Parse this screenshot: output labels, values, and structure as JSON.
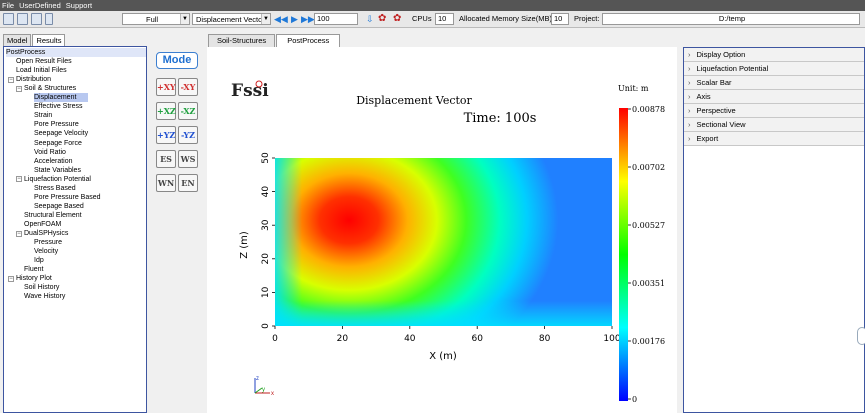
{
  "menubar": {
    "items": [
      "File",
      "UserDefined",
      "Support"
    ]
  },
  "toolbar": {
    "view_mode": "Full",
    "result_type": "Displacement Vector",
    "frame_value": "100",
    "cpus_label": "CPUs",
    "cpus_value": "10",
    "memory_label": "Allocated Memory Size(MB) :",
    "memory_value": "10",
    "project_label": "Project:",
    "project_value": "D:/temp"
  },
  "left_tabs": [
    "Model",
    "Results"
  ],
  "tree": {
    "items": [
      {
        "label": "PostProcess",
        "level": 0
      },
      {
        "label": "Open Result Files",
        "level": 1
      },
      {
        "label": "Load Initial Files",
        "level": 1
      },
      {
        "label": "Distribution",
        "level": 1
      },
      {
        "label": "Soil & Structures",
        "level": 2
      },
      {
        "label": "Displacement",
        "level": 3
      },
      {
        "label": "Effective Stress",
        "level": 3
      },
      {
        "label": "Strain",
        "level": 3
      },
      {
        "label": "Pore Pressure",
        "level": 3
      },
      {
        "label": "Seepage Velocity",
        "level": 3
      },
      {
        "label": "Seepage Force",
        "level": 3
      },
      {
        "label": "Void Ratio",
        "level": 3
      },
      {
        "label": "Acceleration",
        "level": 3
      },
      {
        "label": "State Variables",
        "level": 3
      },
      {
        "label": "Liquefaction Potential",
        "level": 2
      },
      {
        "label": "Stress Based",
        "level": 3
      },
      {
        "label": "Pore Pressure Based",
        "level": 3
      },
      {
        "label": "Seepage Based",
        "level": 3
      },
      {
        "label": "Structural Element",
        "level": 2
      },
      {
        "label": "OpenFOAM",
        "level": 2
      },
      {
        "label": "DualSPHysics",
        "level": 2
      },
      {
        "label": "Pressure",
        "level": 3
      },
      {
        "label": "Velocity",
        "level": 3
      },
      {
        "label": "Idp",
        "level": 3
      },
      {
        "label": "Fluent",
        "level": 2
      },
      {
        "label": "History Plot",
        "level": 1
      },
      {
        "label": "Soil History",
        "level": 2
      },
      {
        "label": "Wave History",
        "level": 2
      }
    ]
  },
  "palette": {
    "mode_label": "Mode",
    "buttons": [
      "+XY",
      "-XY",
      "+XZ",
      "-XZ",
      "+YZ",
      "-YZ",
      "ES",
      "WS",
      "WN",
      "EN"
    ]
  },
  "center_tabs": [
    "Soil-Structures",
    "PostProcess"
  ],
  "viewport": {
    "logo": "Fssi",
    "title": "Displacement Vector",
    "time": "Time: 100s",
    "unit": "Unit:   m",
    "xlabel": "X (m)",
    "ylabel": "Z (m)",
    "xticks": [
      "0",
      "20",
      "40",
      "60",
      "80",
      "100"
    ],
    "yticks": [
      "0",
      "10",
      "20",
      "30",
      "40",
      "50"
    ],
    "colorbar_labels": [
      "0.00878",
      "0.00702",
      "0.00527",
      "0.00351",
      "0.00176",
      "0"
    ],
    "axis_triad": {
      "x": "x",
      "y": "y",
      "z": "z"
    },
    "colors": {
      "max": "#ff0000",
      "min": "#0000ff"
    }
  },
  "right_panel": {
    "items": [
      "Display Option",
      "Liquefaction Potential",
      "Scalar Bar",
      "Axis",
      "Perspective",
      "Sectional View",
      "Export"
    ]
  }
}
